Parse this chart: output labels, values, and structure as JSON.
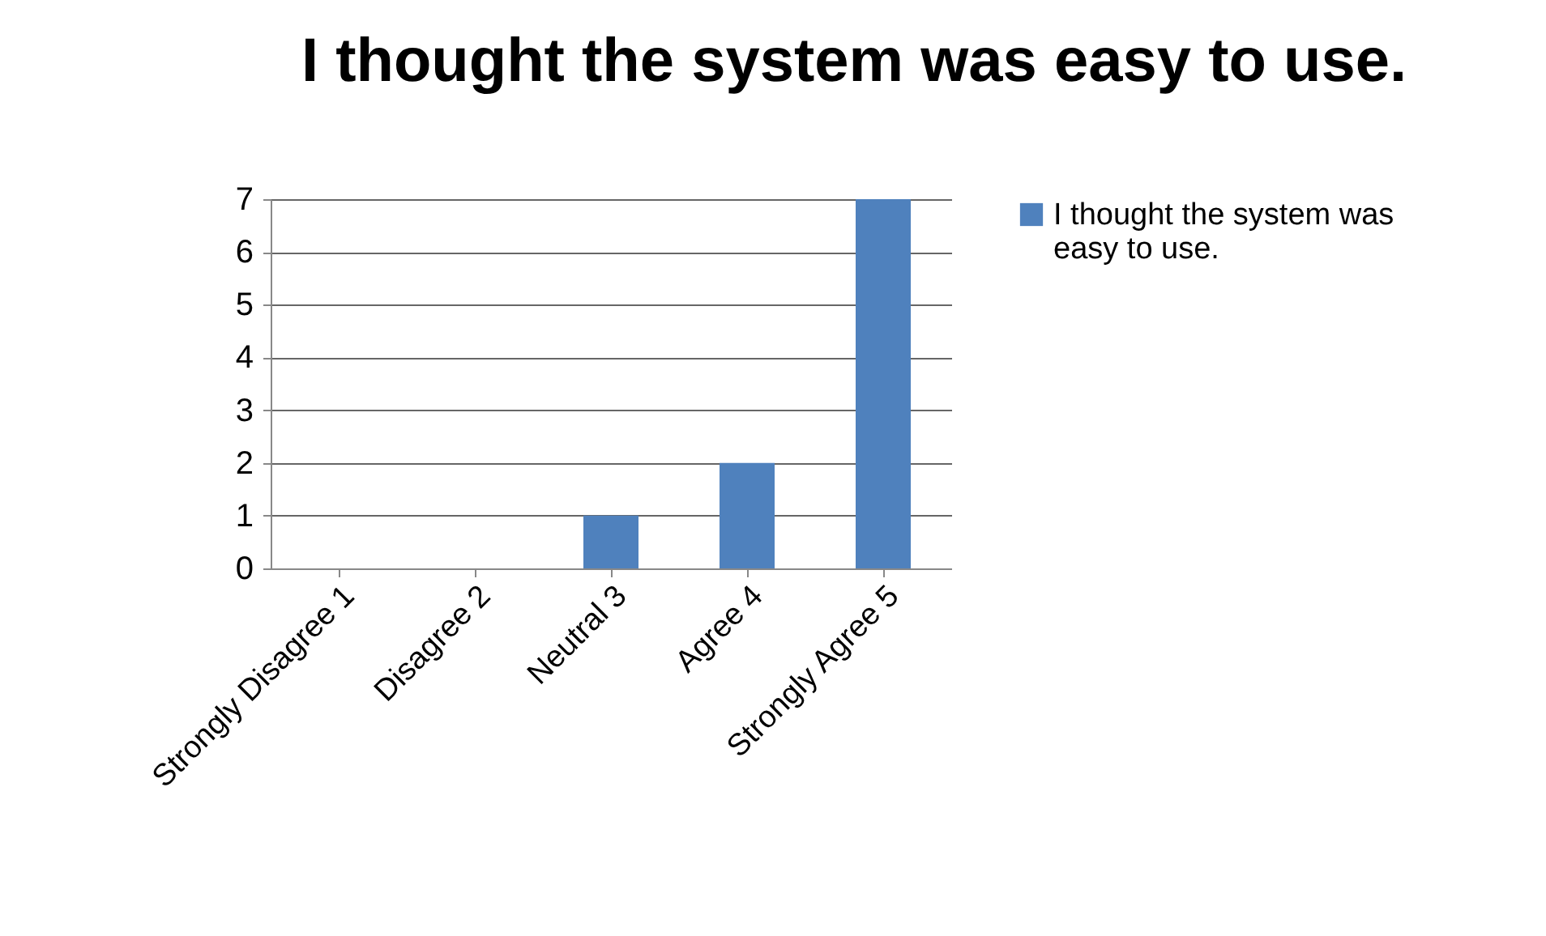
{
  "chart_data": {
    "type": "bar",
    "title": "I thought the system was easy to use.",
    "categories": [
      "Strongly Disagree 1",
      "Disagree 2",
      "Neutral 3",
      "Agree 4",
      "Strongly Agree 5"
    ],
    "series": [
      {
        "name": "I thought the system was easy to use.",
        "color": "#4f81bd",
        "values": [
          0,
          0,
          1,
          2,
          7
        ]
      }
    ],
    "ylim": [
      0,
      7
    ],
    "yticks": [
      0,
      1,
      2,
      3,
      4,
      5,
      6,
      7
    ],
    "grid": "y",
    "legend": "right"
  }
}
